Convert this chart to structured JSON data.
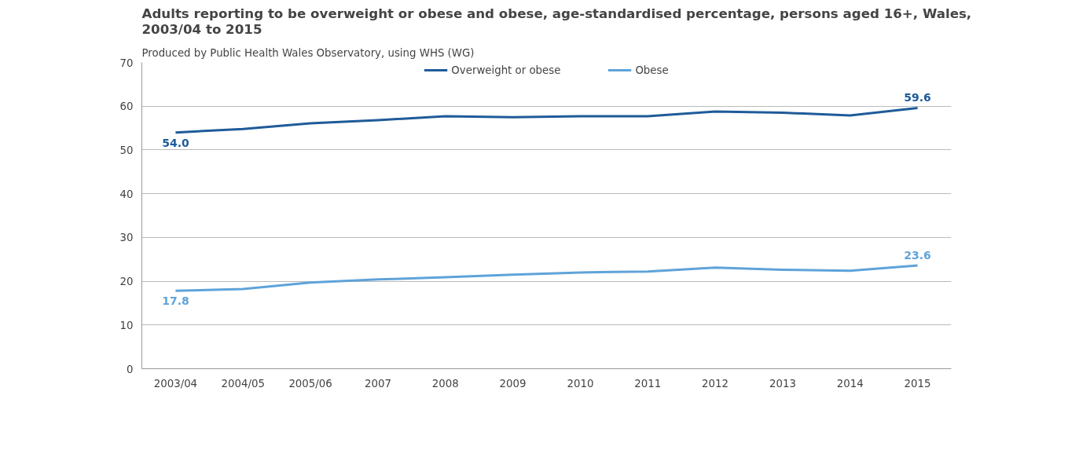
{
  "chart_data": {
    "type": "line",
    "title": "Adults reporting to be overweight or obese and obese, age-standardised percentage, persons aged 16+, Wales, 2003/04 to 2015",
    "subtitle": "Produced by Public Health Wales Observatory, using WHS (WG)",
    "categories": [
      "2003/04",
      "2004/05",
      "2005/06",
      "2007",
      "2008",
      "2009",
      "2010",
      "2011",
      "2012",
      "2013",
      "2014",
      "2015"
    ],
    "series": [
      {
        "name": "Overweight or obese",
        "color": "#1f5b99",
        "values": [
          54.0,
          54.8,
          56.1,
          56.8,
          57.7,
          57.5,
          57.7,
          57.7,
          58.8,
          58.5,
          57.9,
          59.6
        ],
        "value_labels": [
          "54.0",
          null,
          null,
          null,
          null,
          null,
          null,
          null,
          null,
          null,
          null,
          "59.6"
        ]
      },
      {
        "name": "Obese",
        "color": "#5fa3d9",
        "values": [
          17.8,
          18.2,
          19.7,
          20.4,
          20.9,
          21.5,
          22.0,
          22.2,
          23.1,
          22.6,
          22.4,
          23.6
        ],
        "value_labels": [
          "17.8",
          null,
          null,
          null,
          null,
          null,
          null,
          null,
          null,
          null,
          null,
          "23.6"
        ]
      }
    ],
    "ylim": [
      0,
      70
    ],
    "yticks": [
      0,
      10,
      20,
      30,
      40,
      50,
      60,
      70
    ],
    "grid": "y",
    "legend": "top",
    "marker": "none",
    "line_style": "solid"
  }
}
